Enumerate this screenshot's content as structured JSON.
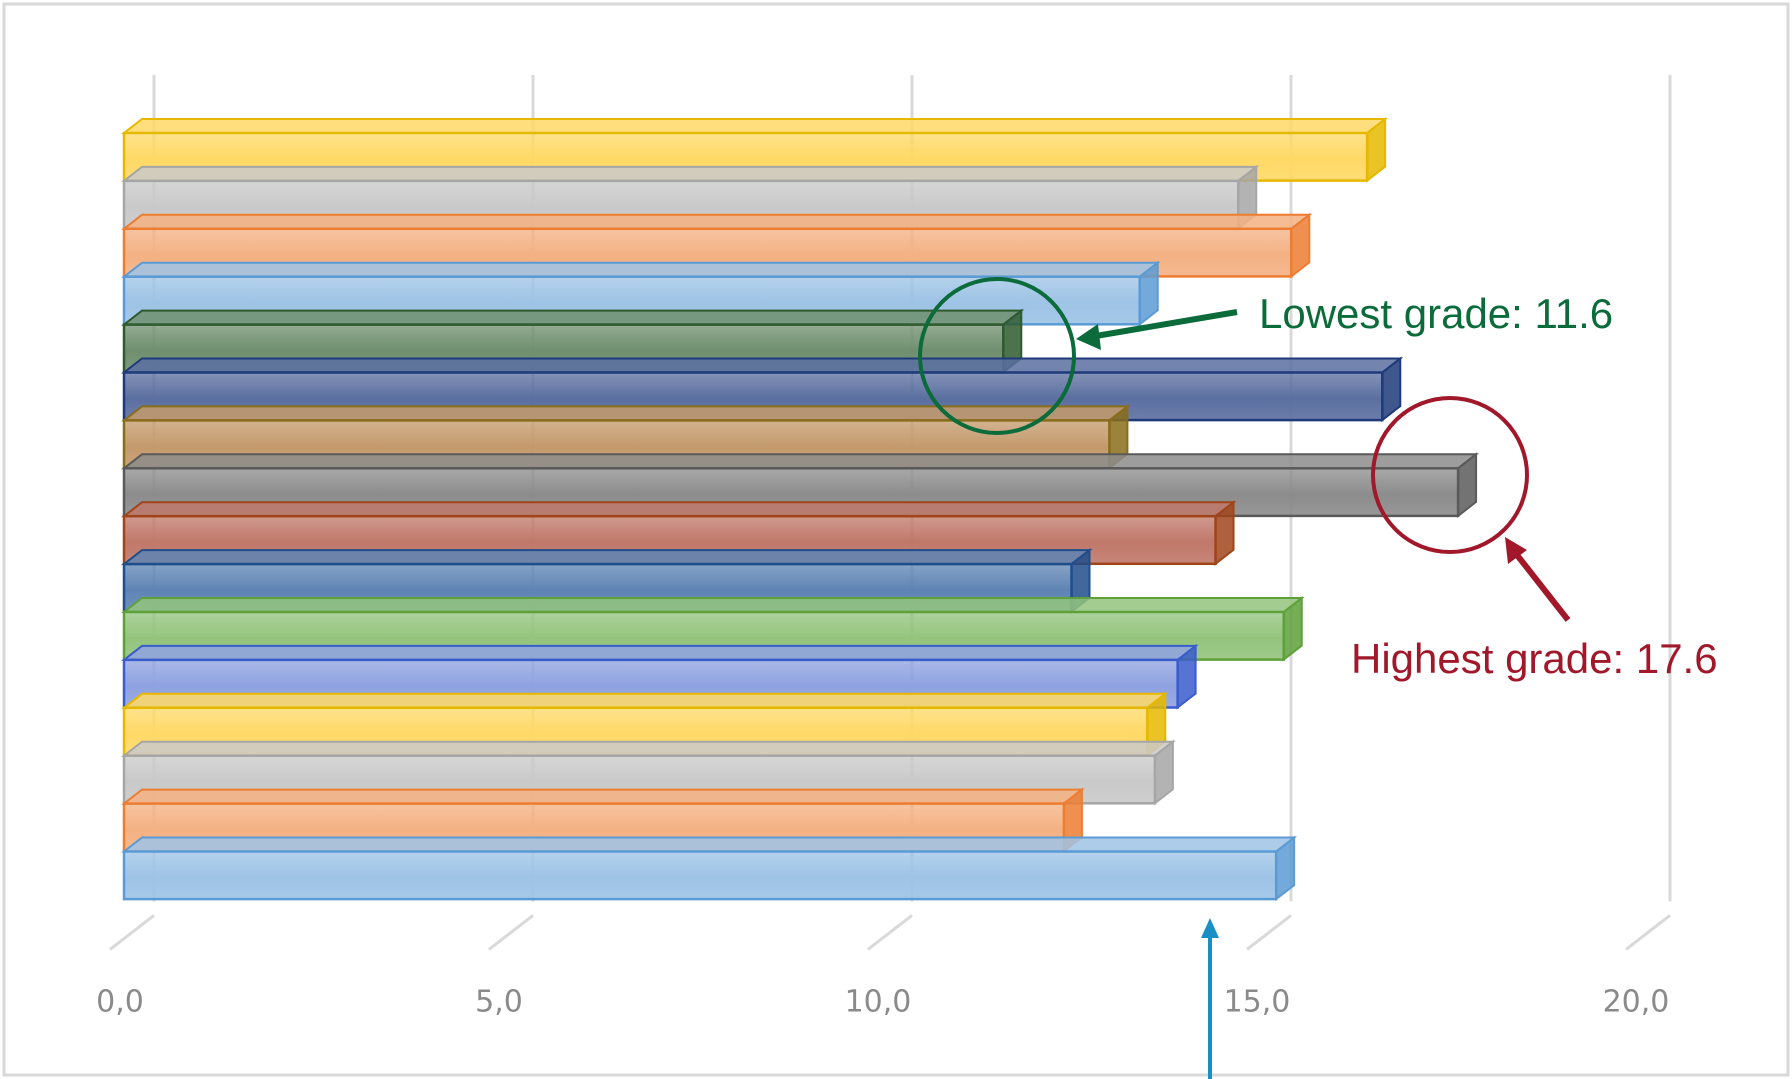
{
  "chart_data": {
    "type": "bar",
    "orientation": "horizontal",
    "style": "3d",
    "title": "",
    "xlabel": "",
    "ylabel": "",
    "xlim": [
      0,
      20
    ],
    "x_ticks": [
      0,
      5,
      10,
      15,
      20
    ],
    "x_tick_labels": [
      "0,0",
      "5,0",
      "10,0",
      "15,0",
      "20,0"
    ],
    "grid": true,
    "legend": "none",
    "values": [
      16.4,
      14.7,
      15.4,
      13.4,
      11.6,
      16.6,
      13.0,
      17.6,
      14.4,
      12.5,
      15.3,
      13.9,
      13.5,
      13.6,
      12.4,
      15.2
    ],
    "colors": [
      "#ffd966",
      "#c9c9c9",
      "#f4b183",
      "#9dc3e6",
      "#6f8f6f",
      "#5b6fa0",
      "#c49a6c",
      "#8c8c8c",
      "#c0786a",
      "#5f84b4",
      "#93c47d",
      "#8ea2e0",
      "#ffd966",
      "#c9c9c9",
      "#f4b183",
      "#9dc3e6"
    ],
    "edge_colors": [
      "#e6b800",
      "#a6a6a6",
      "#ed7d31",
      "#5b9bd5",
      "#2e5a2e",
      "#1f3a7a",
      "#8a6d1a",
      "#5a5a5a",
      "#a0451a",
      "#1f4e8c",
      "#5ea03a",
      "#3a5ccc",
      "#e6b800",
      "#a6a6a6",
      "#ed7d31",
      "#5b9bd5"
    ],
    "annotations": [
      {
        "text": "Lowest grade: 11.6",
        "color": "#0b6b3a",
        "bar_index": 4
      },
      {
        "text": "Highest grade: 17.6",
        "color": "#a0182a",
        "bar_index": 7
      },
      {
        "text": "",
        "color": "#1a8fc4",
        "x_value": 14.6
      }
    ]
  }
}
